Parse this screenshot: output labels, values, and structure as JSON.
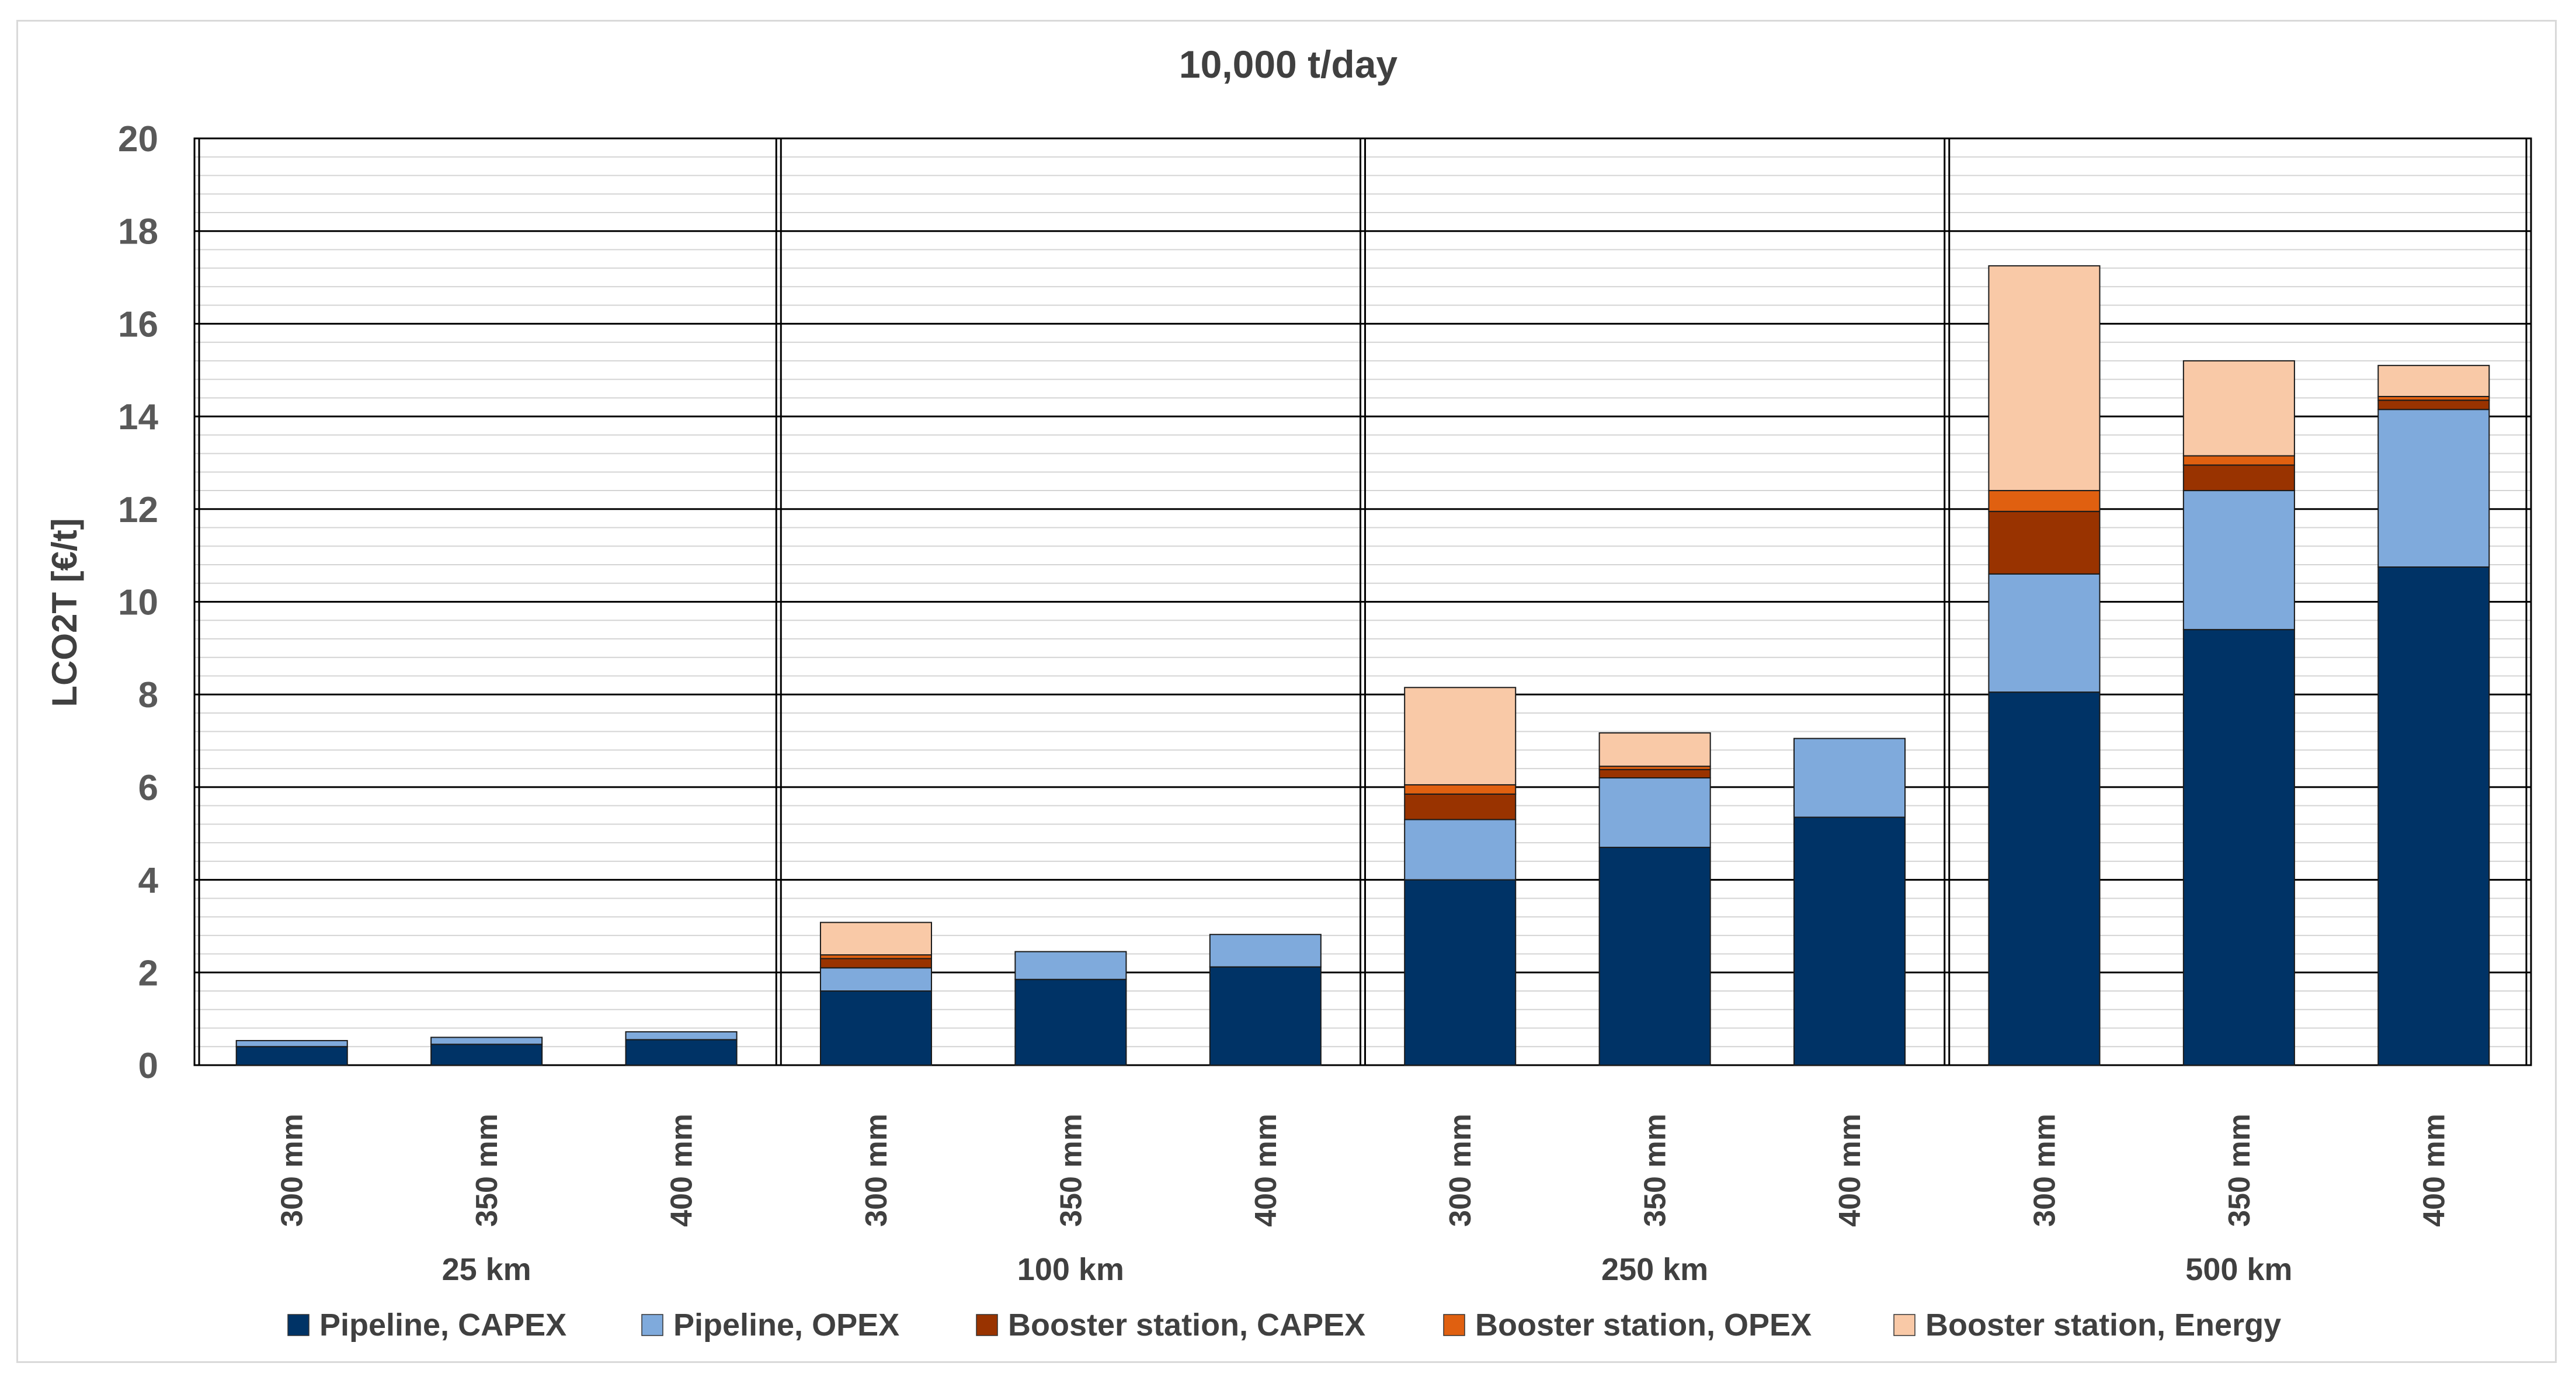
{
  "chart_data": {
    "type": "bar",
    "stacked": true,
    "title": "10,000 t/day",
    "ylabel": "LCO2T [€/t]",
    "xlabel": "",
    "ylim": [
      0,
      20
    ],
    "yticks": [
      0,
      2,
      4,
      6,
      8,
      10,
      12,
      14,
      16,
      18,
      20
    ],
    "ytick_labels": [
      "0",
      "2",
      "4",
      "6",
      "8",
      "10",
      "12",
      "14",
      "16",
      "18",
      "20"
    ],
    "grid": true,
    "legend_position": "bottom",
    "groups": [
      {
        "label": "25 km",
        "categories": [
          "300 mm",
          "350 mm",
          "400 mm"
        ]
      },
      {
        "label": "100 km",
        "categories": [
          "300 mm",
          "350 mm",
          "400 mm"
        ]
      },
      {
        "label": "250 km",
        "categories": [
          "300 mm",
          "350 mm",
          "400 mm"
        ]
      },
      {
        "label": "500 km",
        "categories": [
          "300 mm",
          "350 mm",
          "400 mm"
        ]
      }
    ],
    "series": [
      {
        "name": "Pipeline, CAPEX",
        "color": "#003366",
        "values": [
          0.4,
          0.45,
          0.55,
          1.6,
          1.85,
          2.12,
          4.0,
          4.7,
          5.35,
          8.05,
          9.4,
          10.75
        ]
      },
      {
        "name": "Pipeline, OPEX",
        "color": "#7faadc",
        "values": [
          0.13,
          0.15,
          0.17,
          0.5,
          0.6,
          0.7,
          1.3,
          1.5,
          1.7,
          2.55,
          3.0,
          3.4
        ]
      },
      {
        "name": "Booster station, CAPEX",
        "color": "#993300",
        "values": [
          0,
          0,
          0,
          0.2,
          0,
          0,
          0.55,
          0.18,
          0,
          1.35,
          0.55,
          0.2
        ]
      },
      {
        "name": "Booster station, OPEX",
        "color": "#e06010",
        "values": [
          0,
          0,
          0,
          0.08,
          0,
          0,
          0.2,
          0.07,
          0,
          0.45,
          0.2,
          0.08
        ]
      },
      {
        "name": "Booster station, Energy",
        "color": "#f9c9a7",
        "values": [
          0,
          0,
          0,
          0.7,
          0,
          0,
          2.1,
          0.72,
          0,
          4.85,
          2.05,
          0.67
        ]
      }
    ]
  }
}
